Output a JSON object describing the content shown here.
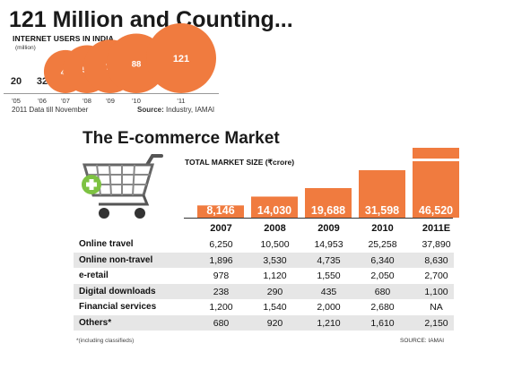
{
  "top_chart": {
    "title": "121 Million and Counting...",
    "subtitle": "INTERNET USERS IN INDIA",
    "unit": "(million)",
    "note": "2011 Data till November",
    "source_label": "Source:",
    "source_value": "Industry, IAMAI",
    "bubble_color": "#f07b3f"
  },
  "bottom_chart": {
    "title": "The E-commerce Market",
    "subtitle": "TOTAL MARKET SIZE (₹crore)",
    "footnote": "*(including classifieds)",
    "source": "SOURCE: IAMAI",
    "bar_color": "#f07b3f",
    "cart_icon": "shopping-cart-icon",
    "plus_icon": "plus-icon",
    "row_labels": [
      "Online travel",
      "Online non-travel",
      "e-retail",
      "Digital downloads",
      "Financial services",
      "Others*"
    ],
    "years": [
      "2007",
      "2008",
      "2009",
      "2010",
      "2011E"
    ],
    "table": [
      [
        "6,250",
        "10,500",
        "14,953",
        "25,258",
        "37,890"
      ],
      [
        "1,896",
        "3,530",
        "4,735",
        "6,340",
        "8,630"
      ],
      [
        "978",
        "1,120",
        "1,550",
        "2,050",
        "2,700"
      ],
      [
        "238",
        "290",
        "435",
        "680",
        "1,100"
      ],
      [
        "1,200",
        "1,540",
        "2,000",
        "2,680",
        "NA"
      ],
      [
        "680",
        "920",
        "1,210",
        "1,610",
        "2,150"
      ]
    ]
  },
  "chart_data": [
    {
      "type": "bubble",
      "title": "121 Million and Counting...",
      "subtitle": "INTERNET USERS IN INDIA",
      "unit": "(million)",
      "categories": [
        "'05",
        "'06",
        "'07",
        "'08",
        "'09",
        "'10",
        "'11"
      ],
      "values": [
        20,
        32,
        46,
        57,
        71,
        88,
        121
      ]
    },
    {
      "type": "bar",
      "title": "The E-commerce Market",
      "subtitle": "TOTAL MARKET SIZE (₹crore)",
      "categories": [
        "2007",
        "2008",
        "2009",
        "2010",
        "2011E"
      ],
      "values": [
        8146,
        14030,
        19688,
        31598,
        46520
      ],
      "value_labels": [
        "8,146",
        "14,030",
        "19,688",
        "31,598",
        "46,520"
      ]
    }
  ]
}
